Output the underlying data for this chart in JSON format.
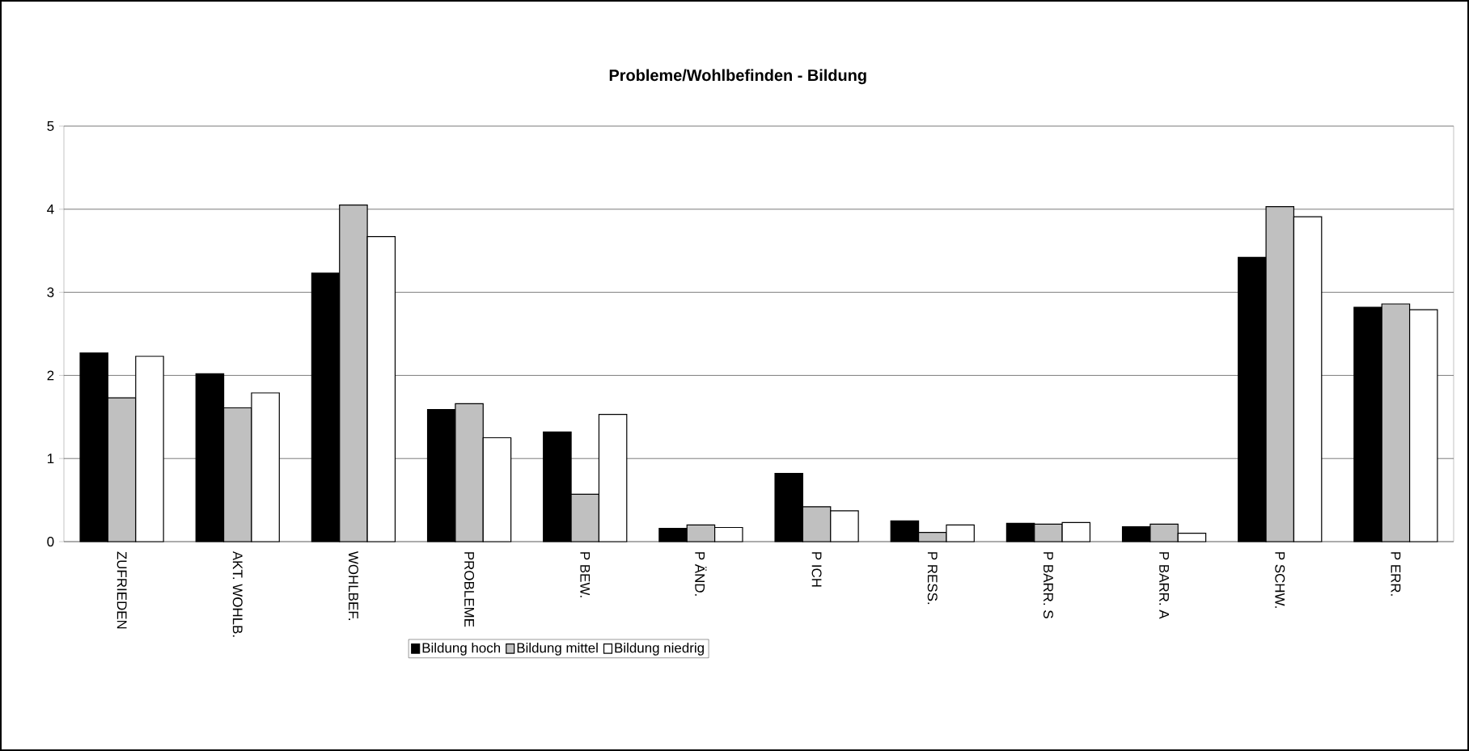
{
  "chart_data": {
    "type": "bar",
    "title": "Probleme/Wohlbefinden - Bildung",
    "categories": [
      "ZUFRIEDEN",
      "AKT. WOHLB.",
      "WOHLBEF.",
      "PROBLEME",
      "P BEW.",
      "P ÄND.",
      "P ICH",
      "P RESS.",
      "P BARR. S",
      "P BARR. A",
      "P SCHW.",
      "P ERR."
    ],
    "series": [
      {
        "name": "Bildung hoch",
        "color": "#000000",
        "values": [
          2.27,
          2.02,
          3.23,
          1.59,
          1.32,
          0.16,
          0.82,
          0.25,
          0.22,
          0.18,
          3.42,
          2.82
        ]
      },
      {
        "name": "Bildung mittel",
        "color": "#c0c0c0",
        "values": [
          1.73,
          1.61,
          4.05,
          1.66,
          0.57,
          0.2,
          0.42,
          0.11,
          0.21,
          0.21,
          4.03,
          2.86
        ]
      },
      {
        "name": "Bildung niedrig",
        "color": "#ffffff",
        "values": [
          2.23,
          1.79,
          3.67,
          1.25,
          1.53,
          0.17,
          0.37,
          0.2,
          0.23,
          0.1,
          3.91,
          2.79
        ]
      }
    ],
    "ylim": [
      0,
      5
    ],
    "yticks": [
      0,
      1,
      2,
      3,
      4,
      5
    ],
    "grid": "y",
    "legend": "bottom"
  }
}
